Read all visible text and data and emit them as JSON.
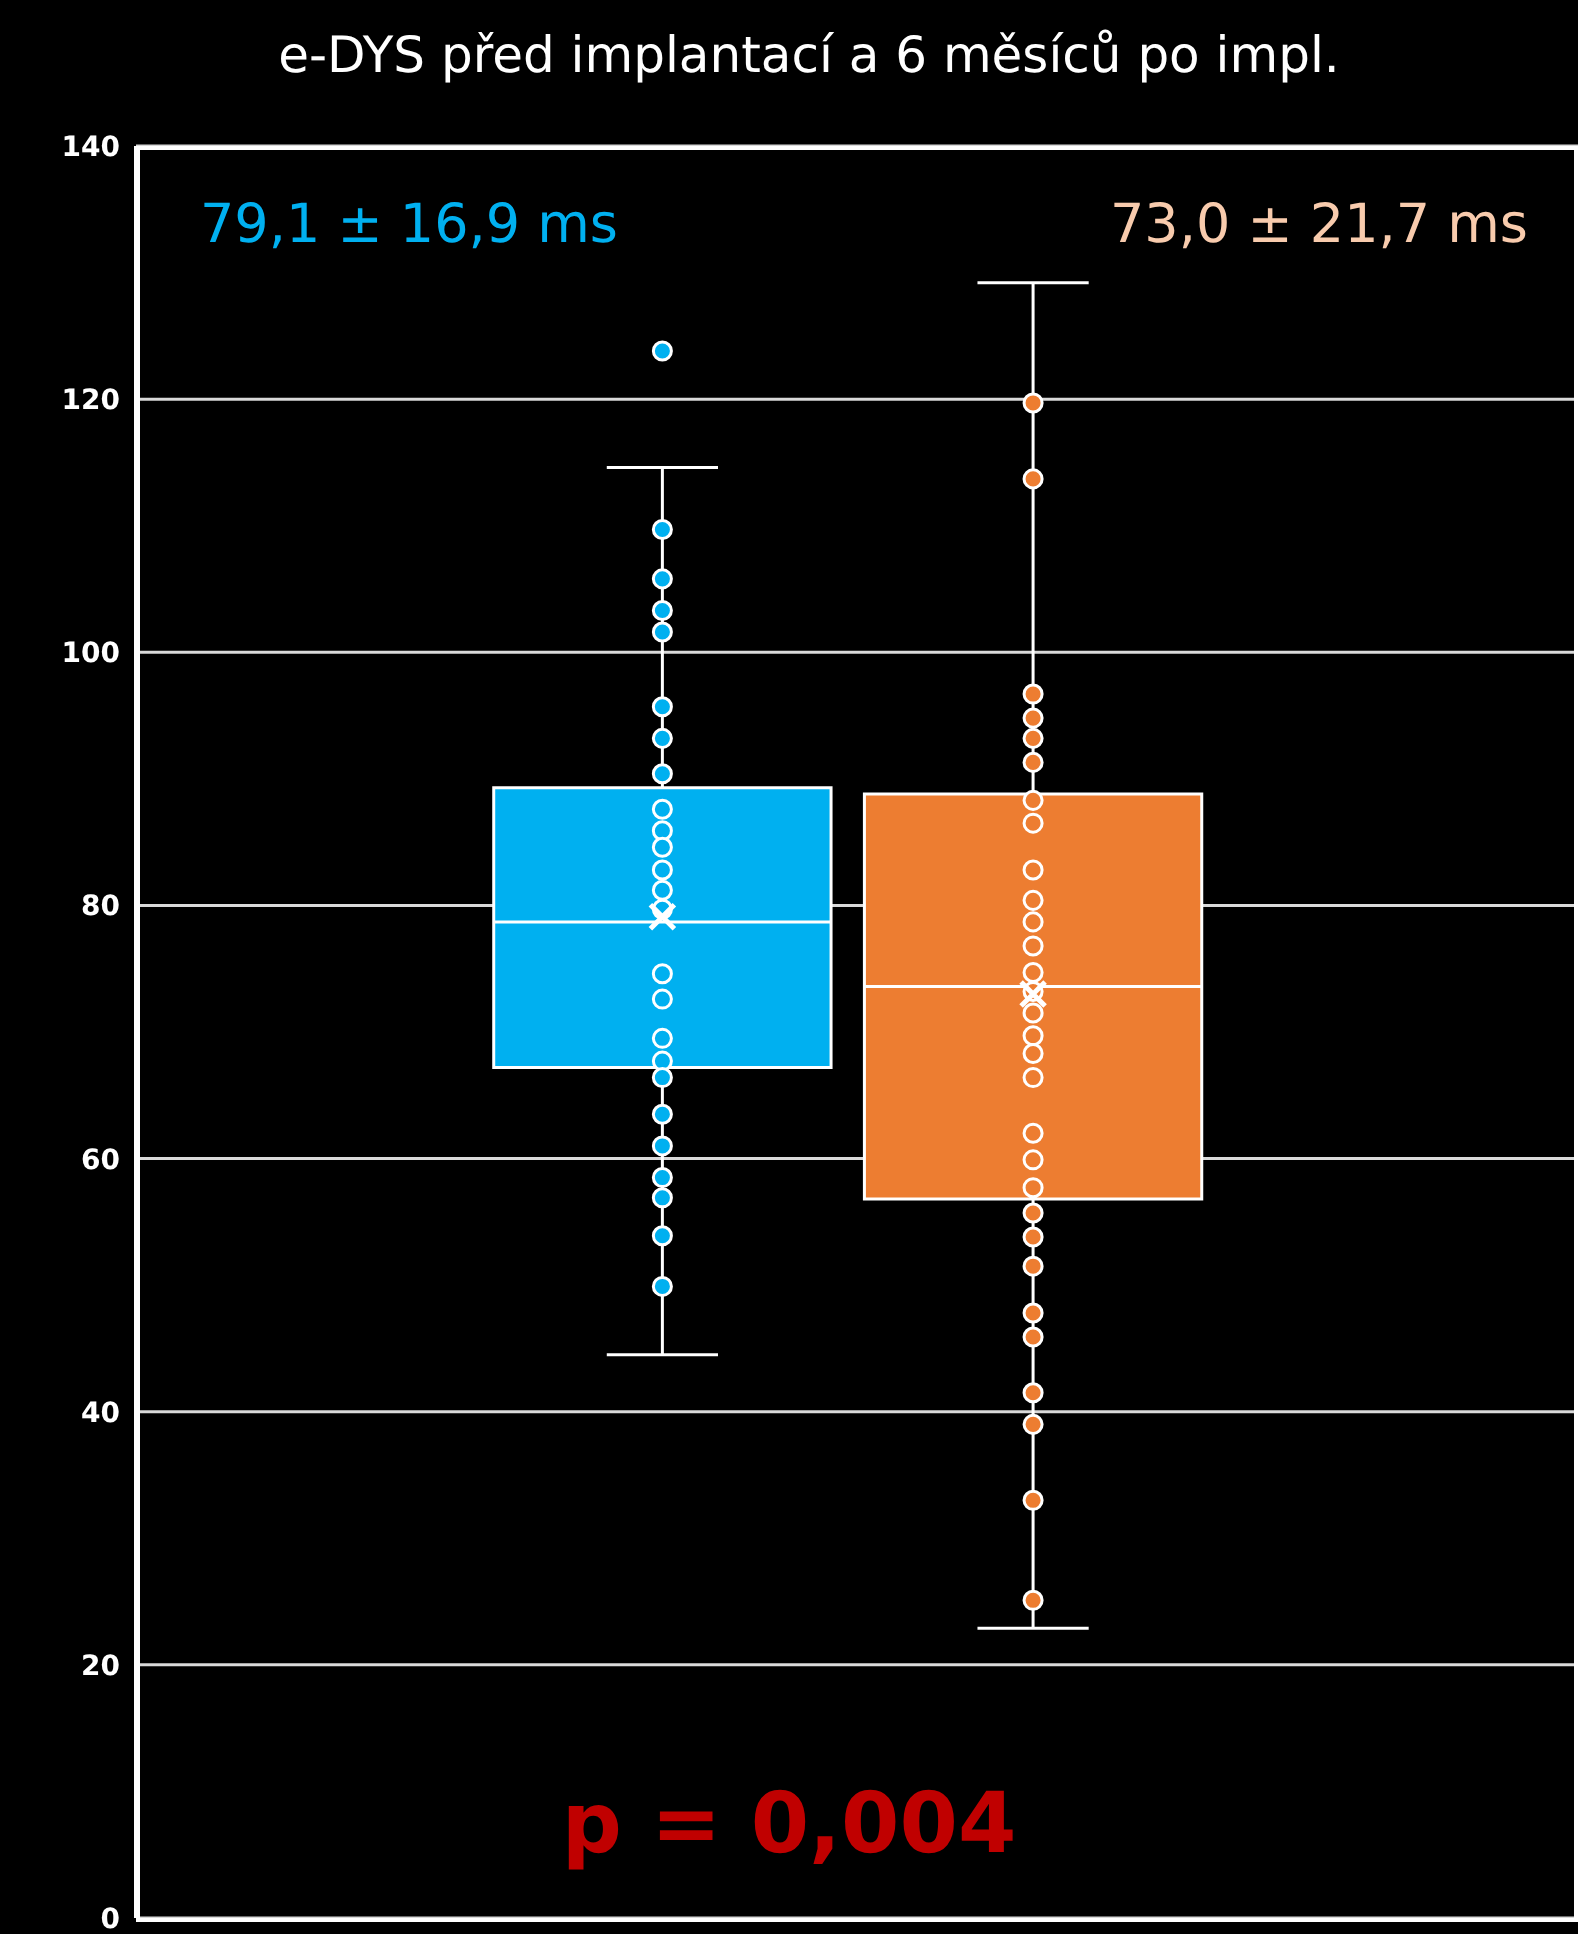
{
  "chart_data": {
    "type": "box",
    "title": "e-DYS před implantací a 6 měsíců po impl.",
    "categories": [
      null,
      null
    ],
    "colors": [
      "#00b0f0",
      "#ed7d31"
    ],
    "boxes": [
      {
        "low": 44.5,
        "q1": 67.2,
        "median": 78.7,
        "q3": 89.3,
        "high": 114.6,
        "mean": 79.1,
        "outliers": [
          123.8,
          109.7,
          105.8,
          103.3,
          101.6,
          95.7,
          93.2,
          90.4,
          87.6,
          85.9,
          84.6,
          82.8,
          81.2,
          79.7,
          74.6,
          72.6,
          69.5,
          67.7,
          66.4,
          63.5,
          61.0,
          58.5,
          56.9,
          53.9,
          49.9
        ]
      },
      {
        "low": 22.9,
        "q1": 56.8,
        "median": 73.6,
        "q3": 88.8,
        "high": 129.2,
        "mean": 73.0,
        "outliers": [
          119.7,
          113.7,
          96.7,
          94.8,
          93.2,
          91.3,
          88.3,
          86.5,
          82.8,
          80.4,
          78.7,
          76.8,
          74.7,
          73.2,
          71.5,
          69.7,
          68.3,
          66.4,
          62.0,
          59.9,
          57.7,
          55.7,
          53.8,
          51.5,
          47.8,
          45.9,
          41.5,
          39.0,
          33.0,
          25.1
        ]
      }
    ],
    "ylim": [
      0,
      140
    ],
    "yticks": [
      0,
      20,
      40,
      60,
      80,
      100,
      120,
      140
    ],
    "grid": "y",
    "tick_labels": "y",
    "marker": "circle",
    "annotations": [
      "79,1 ± 16,9 ms",
      "73,0 ± 21,7 ms",
      "p = 0,004"
    ]
  }
}
